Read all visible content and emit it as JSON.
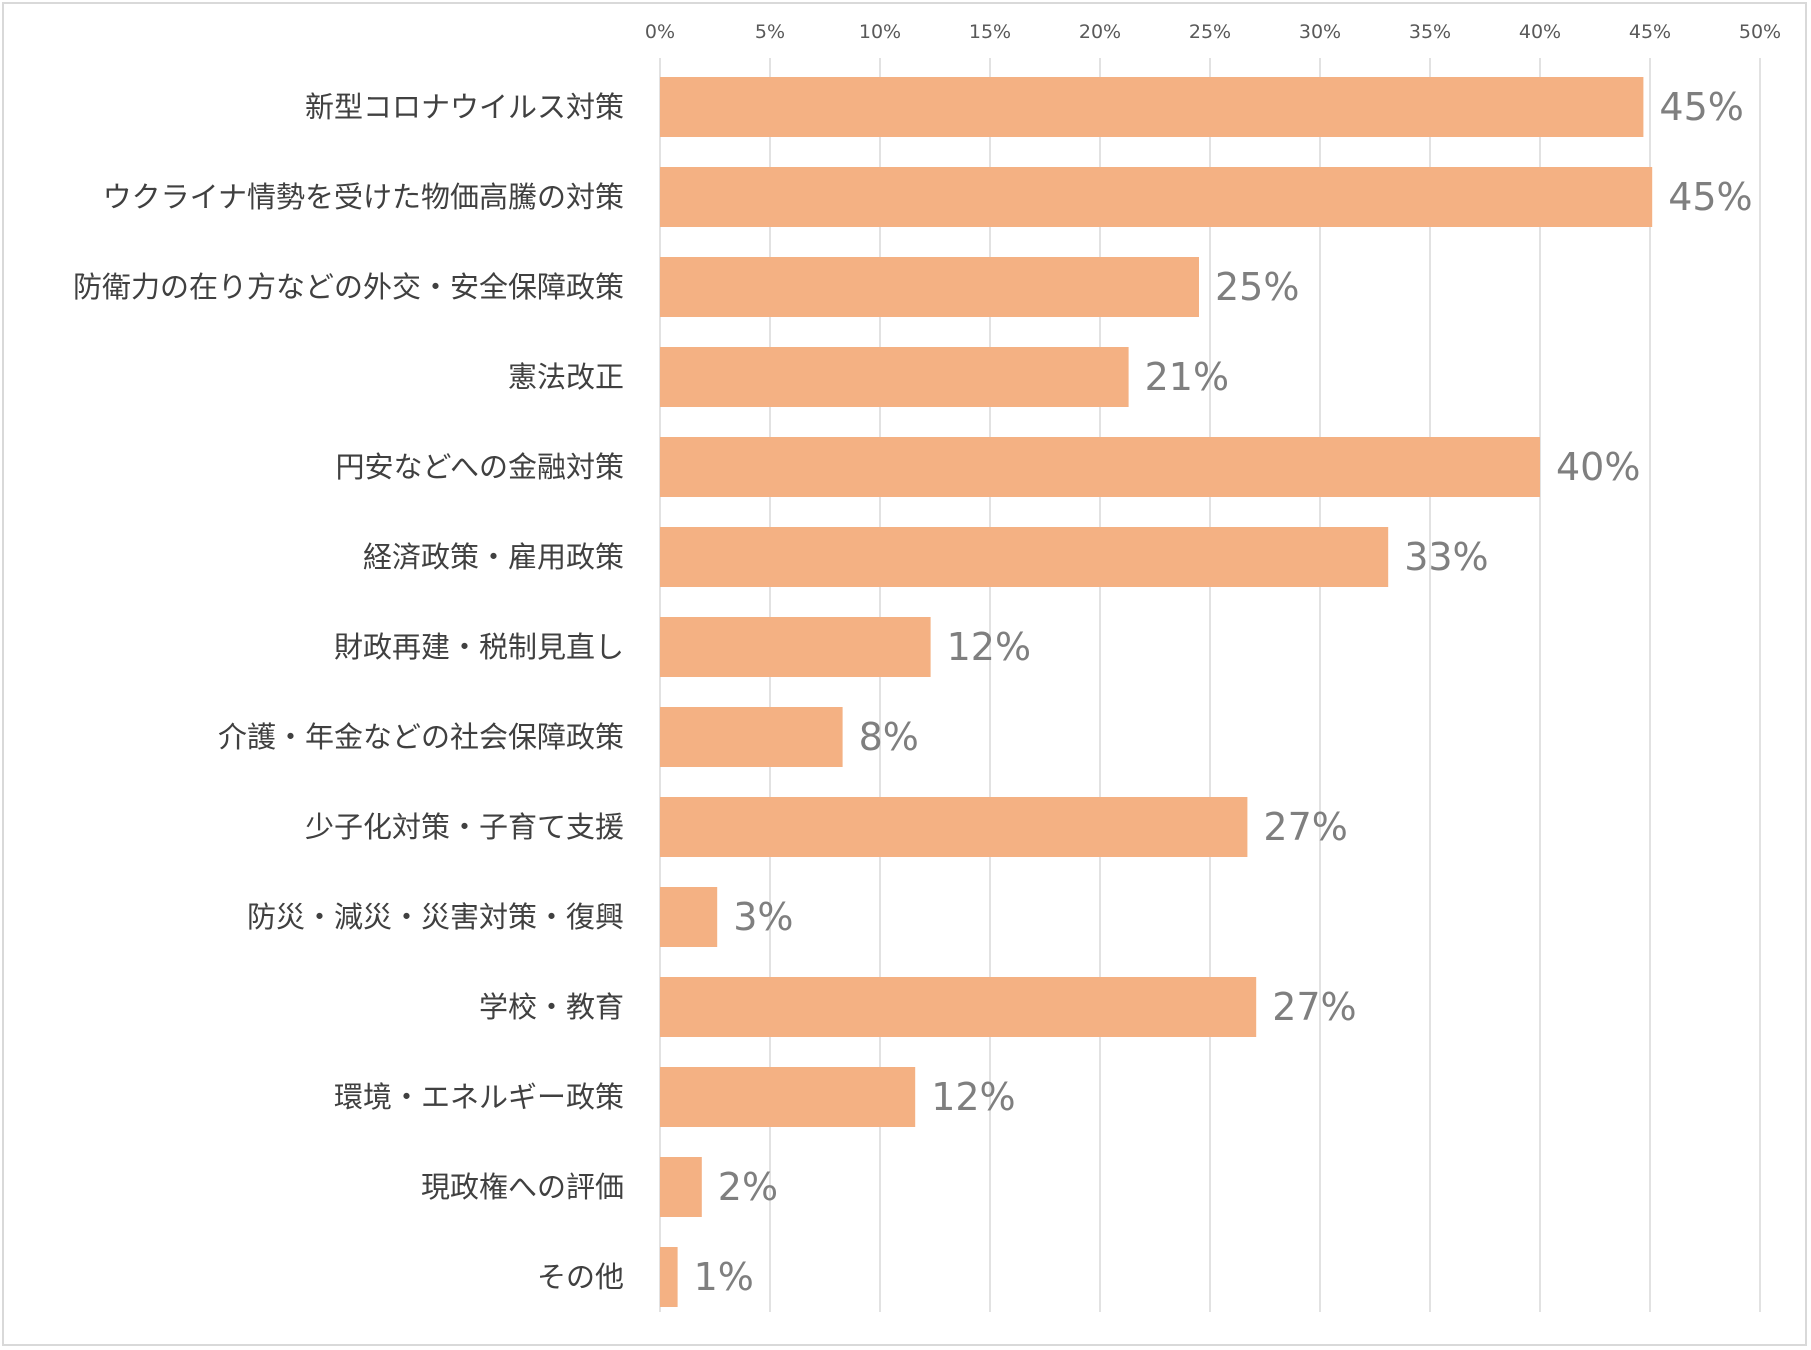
{
  "chart_data": {
    "type": "bar",
    "orientation": "horizontal",
    "title": "",
    "xlabel": "",
    "ylabel": "",
    "xlim": [
      0,
      50
    ],
    "grid": true,
    "legend": "none",
    "bar_color": "#f4b183",
    "x_ticks": [
      "0%",
      "5%",
      "10%",
      "15%",
      "20%",
      "25%",
      "30%",
      "35%",
      "40%",
      "45%",
      "50%"
    ],
    "categories": [
      "新型コロナウイルス対策",
      "ウクライナ情勢を受けた物価高騰の対策",
      "防衛力の在り方などの外交・安全保障政策",
      "憲法改正",
      "円安などへの金融対策",
      "経済政策・雇用政策",
      "財政再建・税制見直し",
      "介護・年金などの社会保障政策",
      "少子化対策・子育て支援",
      "防災・減災・災害対策・復興",
      "学校・教育",
      "環境・エネルギー政策",
      "現政権への評価",
      "その他"
    ],
    "values": [
      44.7,
      45.1,
      24.5,
      21.3,
      40.0,
      33.1,
      12.3,
      8.3,
      26.7,
      2.6,
      27.1,
      11.6,
      1.9,
      0.8
    ],
    "value_labels": [
      "45%",
      "45%",
      "25%",
      "21%",
      "40%",
      "33%",
      "12%",
      "8%",
      "27%",
      "3%",
      "27%",
      "12%",
      "2%",
      "1%"
    ]
  }
}
